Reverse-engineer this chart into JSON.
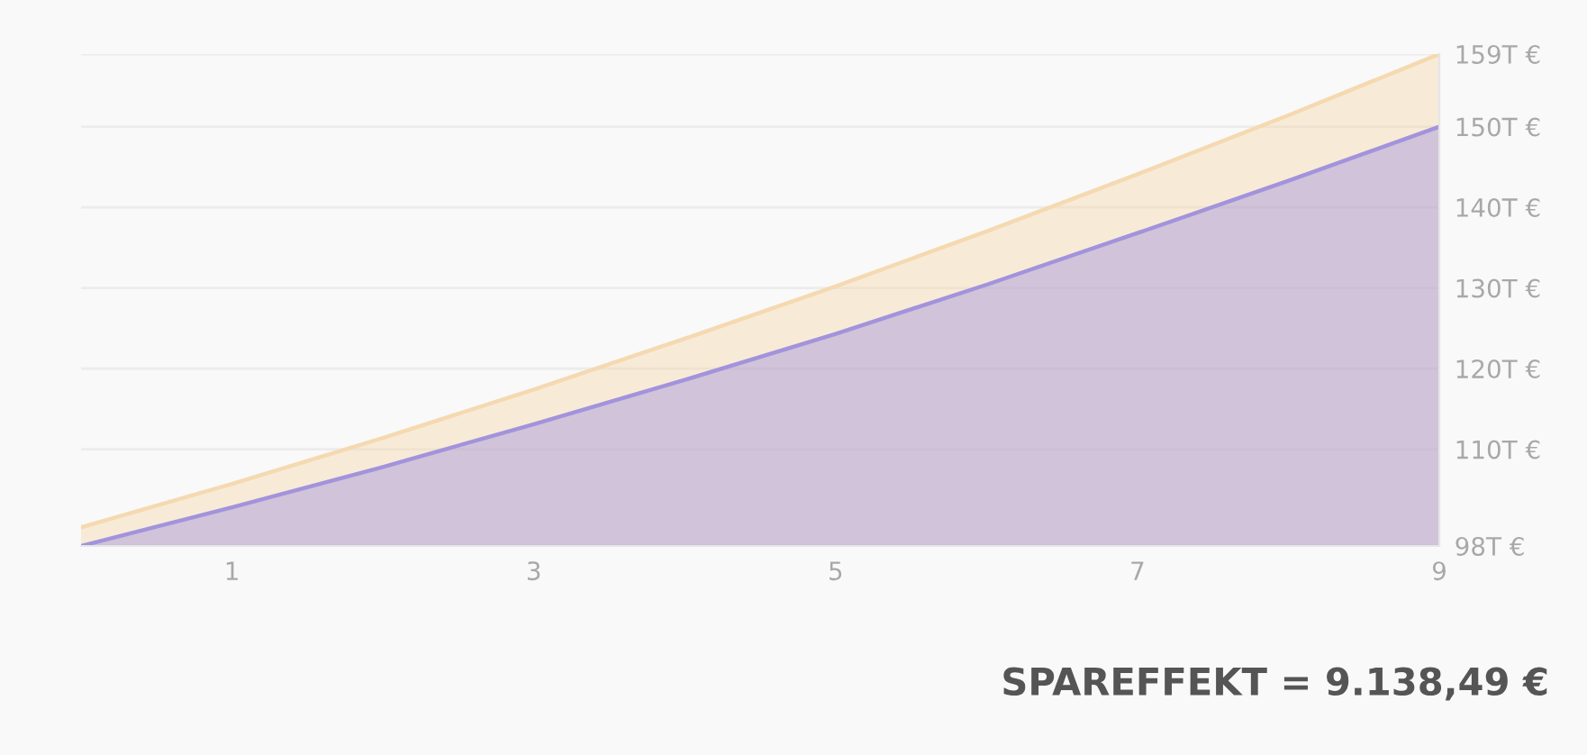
{
  "chart_data": {
    "type": "area",
    "x": [
      0,
      1,
      2,
      3,
      4,
      5,
      6,
      7,
      8,
      9
    ],
    "series": [
      {
        "color": "#f5d9b0",
        "values": [
          100.3,
          105.7,
          111.4,
          117.4,
          123.7,
          130.2,
          137,
          144.1,
          151.4,
          159
        ]
      },
      {
        "color": "#a293dc",
        "values": [
          98,
          102.8,
          107.8,
          113.1,
          118.6,
          124.3,
          130.4,
          136.8,
          143.3,
          150
        ]
      }
    ],
    "xlim": [
      0,
      9
    ],
    "xticks": [
      1,
      3,
      5,
      7,
      9
    ],
    "ylim": [
      98,
      159
    ],
    "yticks": [
      {
        "value": 98,
        "label": "98T €"
      },
      {
        "value": 110,
        "label": "110T €"
      },
      {
        "value": 120,
        "label": "120T €"
      },
      {
        "value": 130,
        "label": "130T €"
      },
      {
        "value": 140,
        "label": "140T €"
      },
      {
        "value": 150,
        "label": "150T €"
      },
      {
        "value": 159,
        "label": "159T €"
      }
    ],
    "grid": "y",
    "annotations": [
      "SPAREFFEKT = 9.138,49 €"
    ]
  }
}
